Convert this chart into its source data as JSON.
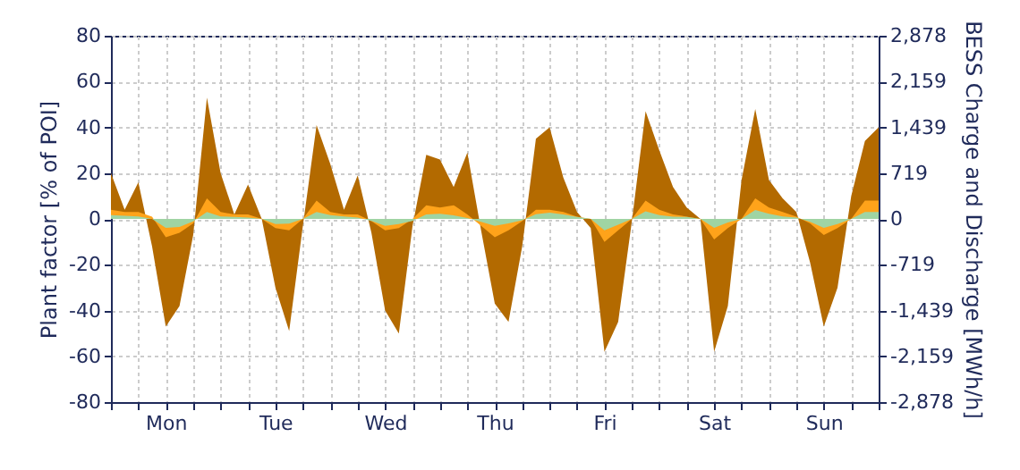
{
  "chart_data": {
    "type": "area",
    "ylabel": "Plant factor [% of POI]",
    "y2label": "BESS Charge and Discharge [MWh/h]",
    "categories": [
      null,
      null,
      null,
      null,
      "Mon",
      null,
      null,
      null,
      null,
      null,
      null,
      null,
      "Tue",
      null,
      null,
      null,
      null,
      null,
      null,
      null,
      "Wed",
      null,
      null,
      null,
      null,
      null,
      null,
      null,
      "Thu",
      null,
      null,
      null,
      null,
      null,
      null,
      null,
      "Fri",
      null,
      null,
      null,
      null,
      null,
      null,
      null,
      "Sat",
      null,
      null,
      null,
      null,
      null,
      null,
      null,
      "Sun",
      null,
      null,
      null,
      null
    ],
    "ylim": [
      -80,
      80
    ],
    "yticks": [
      -80,
      -60,
      -40,
      -20,
      0,
      20,
      40,
      60,
      80
    ],
    "y2lim": [
      -2878,
      2878
    ],
    "y2ticks": [
      {
        "value": -2878,
        "label": "-2,878"
      },
      {
        "value": -2159,
        "label": "-2,159"
      },
      {
        "value": -1439,
        "label": "-1,439"
      },
      {
        "value": -719,
        "label": "-719"
      },
      {
        "value": 0,
        "label": "0"
      },
      {
        "value": 719,
        "label": "719"
      },
      {
        "value": 1439,
        "label": "1,439"
      },
      {
        "value": 2159,
        "label": "2,159"
      },
      {
        "value": 2878,
        "label": "2,878"
      }
    ],
    "grid": true,
    "series": [
      {
        "color": "#b36a00",
        "values": [
          20,
          4,
          16,
          -12,
          -47,
          -38,
          -7,
          53,
          20,
          2,
          15,
          0,
          -30,
          -49,
          -3,
          41,
          24,
          4,
          19,
          -6,
          -40,
          -50,
          -3,
          28,
          26,
          14,
          29,
          -5,
          -37,
          -45,
          -12,
          35,
          40,
          18,
          3,
          -4,
          -58,
          -45,
          -1,
          47,
          30,
          14,
          5,
          0,
          -58,
          -38,
          17,
          48,
          17,
          9,
          3,
          -19,
          -47,
          -30,
          10,
          34,
          40
        ]
      },
      {
        "color": "#ffa31a",
        "values": [
          4,
          3,
          3,
          1,
          -8,
          -6,
          -2,
          9,
          3,
          2,
          2,
          0,
          -4,
          -5,
          0,
          8,
          3,
          2,
          2,
          -1,
          -5,
          -4,
          0,
          6,
          5,
          6,
          2,
          -3,
          -8,
          -5,
          -1,
          4,
          4,
          3,
          1,
          0,
          -10,
          -5,
          0,
          8,
          4,
          2,
          1,
          0,
          -9,
          -4,
          0,
          9,
          5,
          3,
          1,
          -2,
          -7,
          -4,
          0,
          8,
          8
        ]
      },
      {
        "color": "#9fd4a3",
        "axis": "y2",
        "values": [
          60,
          50,
          40,
          0,
          -140,
          -125,
          -40,
          110,
          40,
          30,
          20,
          0,
          -80,
          -75,
          0,
          110,
          60,
          40,
          20,
          -30,
          -110,
          -80,
          -30,
          70,
          80,
          55,
          15,
          -45,
          -110,
          -70,
          -20,
          75,
          100,
          70,
          30,
          0,
          -180,
          -90,
          0,
          120,
          60,
          35,
          30,
          0,
          -140,
          -55,
          0,
          140,
          80,
          40,
          20,
          -45,
          -140,
          -80,
          0,
          110,
          110
        ]
      }
    ]
  }
}
